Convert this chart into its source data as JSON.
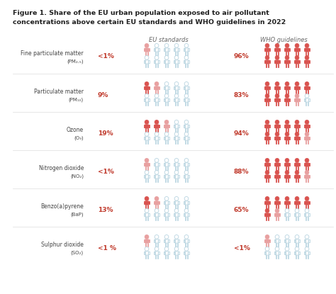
{
  "title_line1": "Figure 1. Share of the EU urban population exposed to air pollutant",
  "title_line2": "concentrations above certain EU standards and WHO guidelines in 2022",
  "col1_header": "EU standards",
  "col2_header": "WHO guidelines",
  "pollutants": [
    {
      "name": "Fine particulate matter",
      "formula": "(PM₂.₅)",
      "eu_pct": "<1%",
      "eu_val": 1,
      "who_pct": "96%",
      "who_val": 96
    },
    {
      "name": "Particulate matter",
      "formula": "(PM₁₀)",
      "eu_pct": "9%",
      "eu_val": 9,
      "who_pct": "83%",
      "who_val": 83
    },
    {
      "name": "Ozone",
      "formula": "(O₃)",
      "eu_pct": "19%",
      "eu_val": 19,
      "who_pct": "94%",
      "who_val": 94
    },
    {
      "name": "Nitrogen dioxide",
      "formula": "(NO₂)",
      "eu_pct": "<1%",
      "eu_val": 1,
      "who_pct": "88%",
      "who_val": 88
    },
    {
      "name": "Benzo(a)pyrene",
      "formula": "(BaP)",
      "eu_pct": "13%",
      "eu_val": 13,
      "who_pct": "65%",
      "who_val": 65
    },
    {
      "name": "Sulphur dioxide",
      "formula": "(SO₂)",
      "eu_pct": "<1 %",
      "eu_val": 1,
      "who_pct": "<1%",
      "who_val": 1
    }
  ],
  "colors": {
    "filled_red": "#d9534f",
    "filled_light_red": "#e8a0a0",
    "outline_blue": "#b8d4e0",
    "background": "#ffffff",
    "title_color": "#222222",
    "header_color": "#666666",
    "label_color": "#444444",
    "pct_red": "#c0392b"
  },
  "icons_per_group": 10,
  "icons_cols": 10,
  "icons_rows": 2
}
